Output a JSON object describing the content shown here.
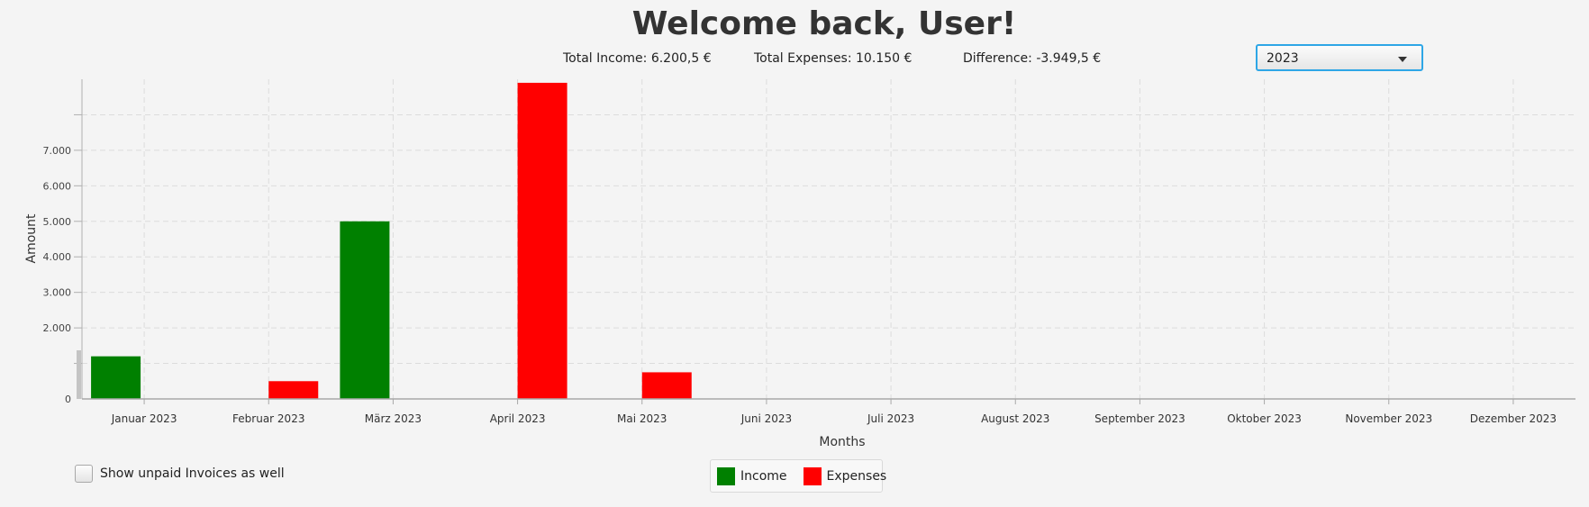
{
  "header": {
    "title": "Welcome back, User!",
    "total_income": "Total Income: 6.200,5 €",
    "total_expenses": "Total Expenses: 10.150 €",
    "difference": "Difference: -3.949,5 €"
  },
  "year_select": {
    "value": "2023",
    "icon": "chevron-down-icon"
  },
  "options": {
    "show_unpaid_label": "Show unpaid Invoices as well",
    "show_unpaid_checked": false
  },
  "colors": {
    "income": "#008000",
    "expenses": "#ff0000",
    "accent": "#2ea6e6"
  },
  "chart_data": {
    "type": "bar",
    "categories": [
      "Januar 2023",
      "Februar 2023",
      "März 2023",
      "April 2023",
      "Mai 2023",
      "Juni 2023",
      "Juli 2023",
      "August 2023",
      "September 2023",
      "Oktober 2023",
      "November 2023",
      "Dezember 2023"
    ],
    "series": [
      {
        "name": "Income",
        "color": "#008000",
        "values": [
          1200,
          0,
          5000,
          0,
          0,
          0,
          0,
          0,
          0,
          0,
          0,
          0
        ]
      },
      {
        "name": "Expenses",
        "color": "#ff0000",
        "values": [
          0,
          500,
          0,
          8900,
          750,
          0,
          0,
          0,
          0,
          0,
          0,
          0
        ]
      }
    ],
    "xlabel": "Months",
    "ylabel": "Amount",
    "ylim": [
      0,
      9000
    ],
    "yticks": [
      {
        "value": 0,
        "label": "0"
      },
      {
        "value": 2000,
        "label": "2.000"
      },
      {
        "value": 3000,
        "label": "3.000"
      },
      {
        "value": 4000,
        "label": "4.000"
      },
      {
        "value": 5000,
        "label": "5.000"
      },
      {
        "value": 6000,
        "label": "6.000"
      },
      {
        "value": 7000,
        "label": "7.000"
      }
    ],
    "grid": true,
    "legend_position": "bottom-center"
  }
}
